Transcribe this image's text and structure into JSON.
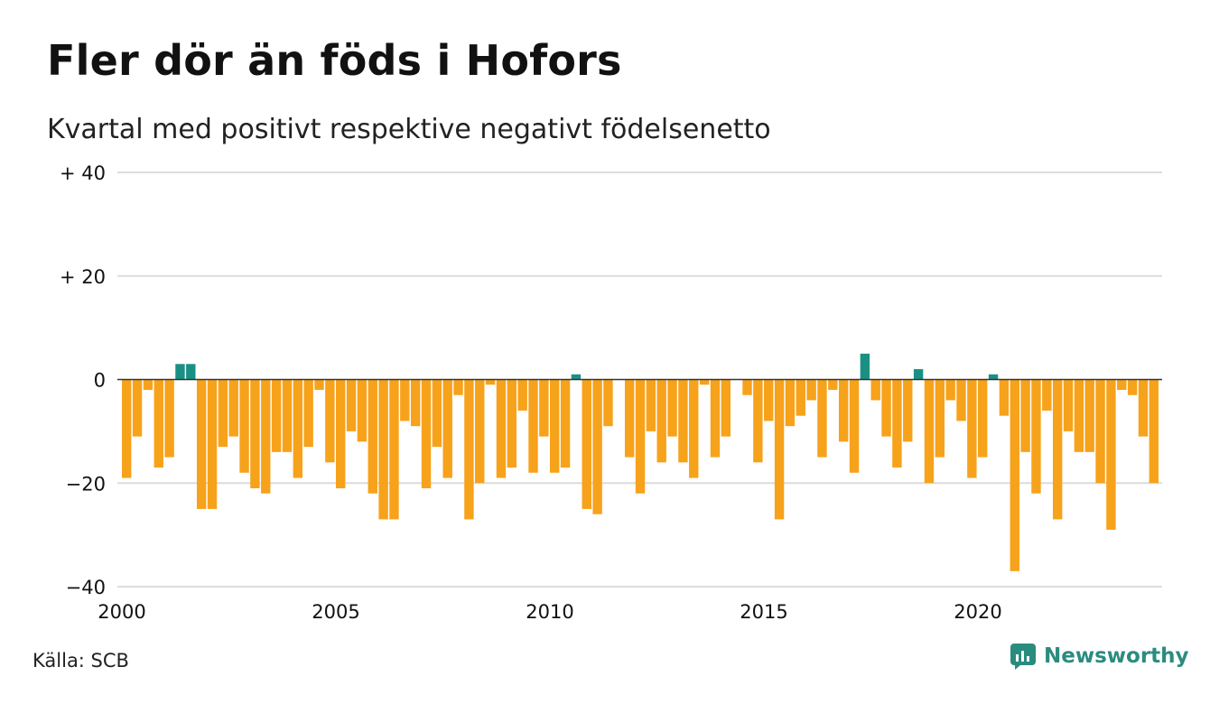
{
  "title": "Fler dör än föds i Hofors",
  "subtitle": "Kvartal med positivt respektive negativt födelsenetto",
  "source": "Källa: SCB",
  "brand": "Newsworthy",
  "colors": {
    "negative": "#f7a21b",
    "positive": "#1a9085",
    "grid": "#dcdcdc",
    "zero_line": "#333333",
    "brand": "#2a8c7f"
  },
  "chart_data": {
    "type": "bar",
    "start_period": "2000 Q1",
    "period": "quarter",
    "x_ticks": [
      2000,
      2005,
      2010,
      2015,
      2020
    ],
    "y_ticks": [
      {
        "value": 40,
        "label": "+ 40"
      },
      {
        "value": 20,
        "label": "+ 20"
      },
      {
        "value": 0,
        "label": "0"
      },
      {
        "value": -20,
        "label": "−20"
      },
      {
        "value": -40,
        "label": "−40"
      }
    ],
    "ylim": [
      -40,
      40
    ],
    "grid": true,
    "values": [
      -19,
      -11,
      -2,
      -17,
      -15,
      3,
      3,
      -25,
      -25,
      -13,
      -11,
      -18,
      -21,
      -22,
      -14,
      -14,
      -19,
      -13,
      -2,
      -16,
      -21,
      -10,
      -12,
      -22,
      -27,
      -27,
      -8,
      -9,
      -21,
      -13,
      -19,
      -3,
      -27,
      -20,
      -1,
      -19,
      -17,
      -6,
      -18,
      -11,
      -18,
      -17,
      1,
      -25,
      -26,
      -9,
      0,
      -15,
      -22,
      -10,
      -16,
      -11,
      -16,
      -19,
      -1,
      -15,
      -11,
      0,
      -3,
      -16,
      -8,
      -27,
      -9,
      -7,
      -4,
      -15,
      -2,
      -12,
      -18,
      5,
      -4,
      -11,
      -17,
      -12,
      2,
      -20,
      -15,
      -4,
      -8,
      -19,
      -15,
      1,
      -7,
      -37,
      -14,
      -22,
      -6,
      -27,
      -10,
      -14,
      -14,
      -20,
      -29,
      -2,
      -3,
      -11,
      -20
    ]
  }
}
